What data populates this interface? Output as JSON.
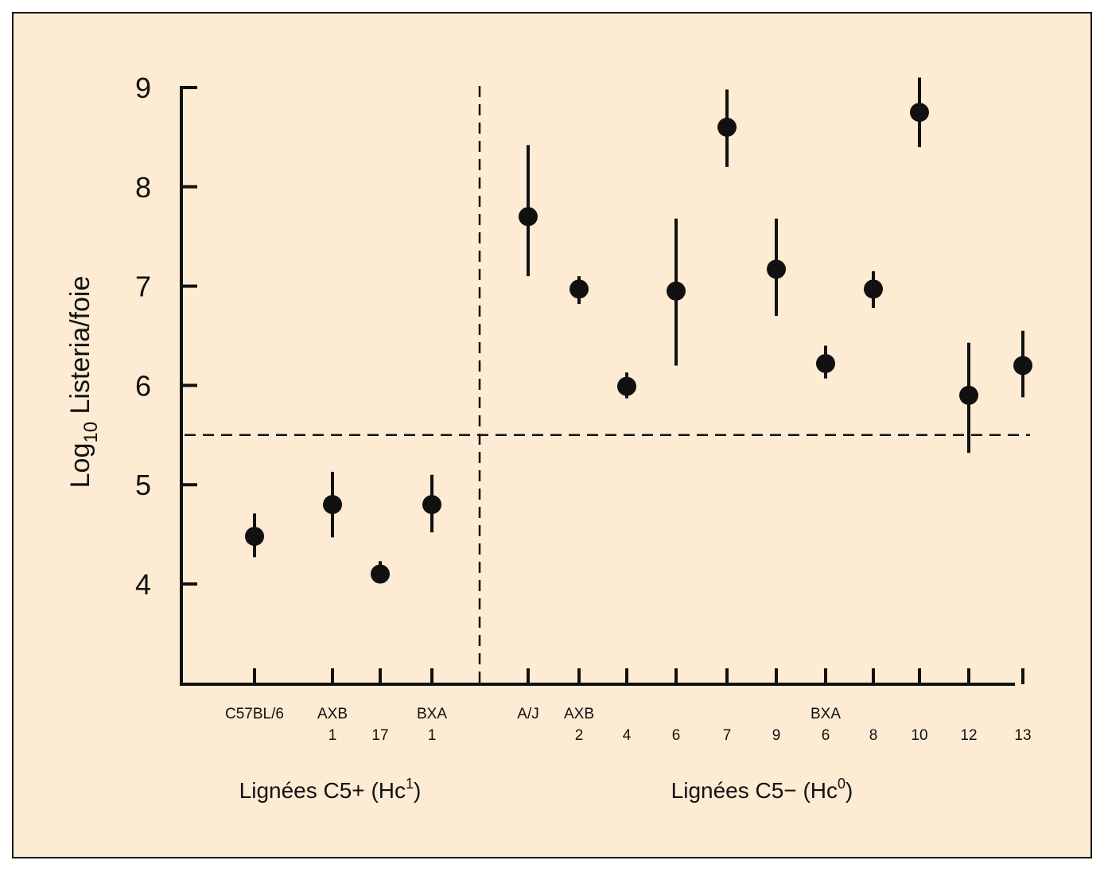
{
  "chart_data": {
    "type": "scatter",
    "title": "",
    "ylabel_prefix": "Log",
    "ylabel_sub": "10",
    "ylabel_main": " Listeria/foie",
    "y_ticks": [
      "4",
      "5",
      "6",
      "7",
      "8",
      "9"
    ],
    "ylim": [
      3,
      9
    ],
    "threshold": 5.5,
    "grid": false,
    "groups": [
      {
        "label_main": "Lignées C5+ (Hc",
        "label_sup": "1",
        "label_end": ")"
      },
      {
        "label_main": "Lignées C5− (Hc",
        "label_sup": "0",
        "label_end": ")"
      }
    ],
    "categories": [
      {
        "top": "C57BL/6",
        "bottom": "",
        "group": 0,
        "y": 4.48,
        "lo": 4.27,
        "hi": 4.71
      },
      {
        "top": "AXB",
        "bottom": "1",
        "group": 0,
        "y": 4.8,
        "lo": 4.47,
        "hi": 5.13
      },
      {
        "top": "",
        "bottom": "17",
        "group": 0,
        "y": 4.1,
        "lo": 4.02,
        "hi": 4.23
      },
      {
        "top": "BXA",
        "bottom": "1",
        "group": 0,
        "y": 4.8,
        "lo": 4.52,
        "hi": 5.1
      },
      {
        "top": "A/J",
        "bottom": "",
        "group": 1,
        "y": 7.7,
        "lo": 7.1,
        "hi": 8.42
      },
      {
        "top": "AXB",
        "bottom": "2",
        "group": 1,
        "y": 6.97,
        "lo": 6.82,
        "hi": 7.1
      },
      {
        "top": "",
        "bottom": "4",
        "group": 1,
        "y": 5.99,
        "lo": 5.87,
        "hi": 6.13
      },
      {
        "top": "",
        "bottom": "6",
        "group": 1,
        "y": 6.95,
        "lo": 6.2,
        "hi": 7.68
      },
      {
        "top": "",
        "bottom": "7",
        "group": 1,
        "y": 8.6,
        "lo": 8.2,
        "hi": 8.98
      },
      {
        "top": "",
        "bottom": "9",
        "group": 1,
        "y": 7.17,
        "lo": 6.7,
        "hi": 7.68
      },
      {
        "top": "BXA",
        "bottom": "6",
        "group": 1,
        "y": 6.22,
        "lo": 6.07,
        "hi": 6.4
      },
      {
        "top": "",
        "bottom": "8",
        "group": 1,
        "y": 6.97,
        "lo": 6.78,
        "hi": 7.15
      },
      {
        "top": "",
        "bottom": "10",
        "group": 1,
        "y": 8.75,
        "lo": 8.4,
        "hi": 9.1
      },
      {
        "top": "",
        "bottom": "12",
        "group": 1,
        "y": 5.9,
        "lo": 5.32,
        "hi": 6.43
      },
      {
        "top": "",
        "bottom": "13",
        "group": 1,
        "y": 6.2,
        "lo": 5.88,
        "hi": 6.55
      }
    ],
    "colors": {
      "background": "#fdebd3",
      "ink": "#111111",
      "frame": "#1a1a1a"
    }
  }
}
